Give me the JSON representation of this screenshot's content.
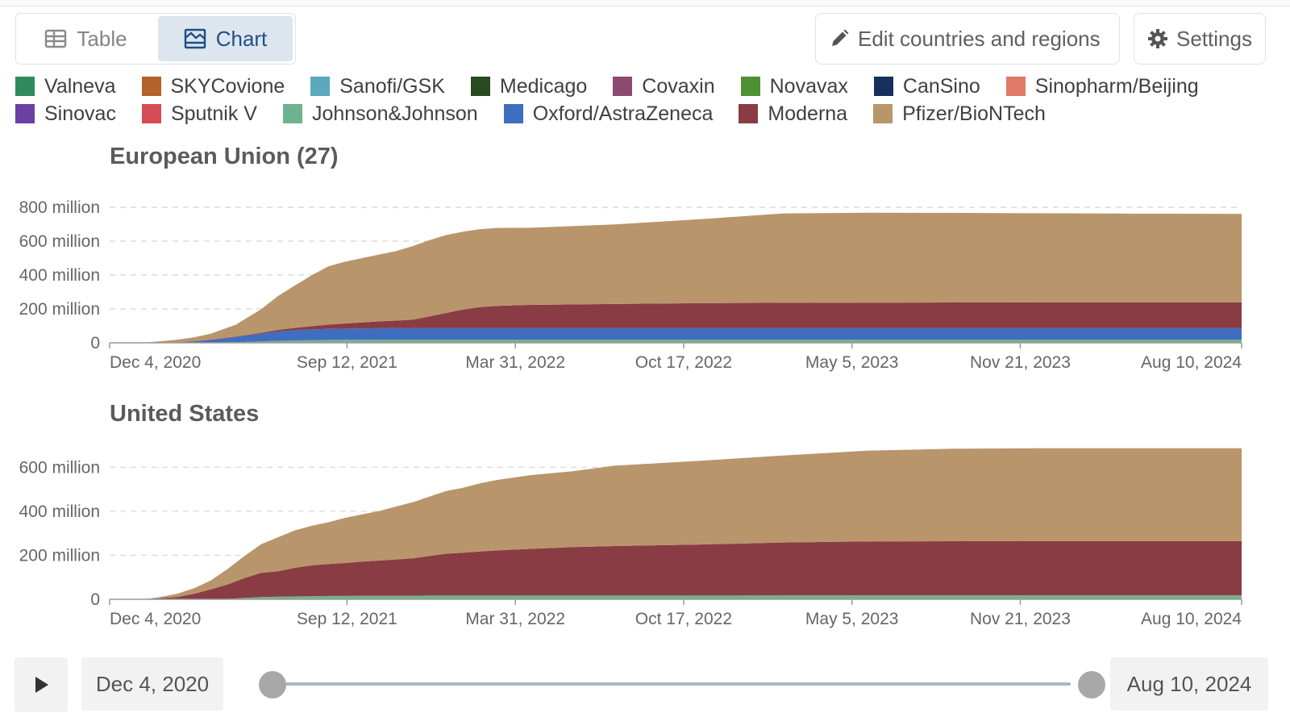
{
  "tabs": [
    {
      "label": "Table",
      "icon": "table-icon",
      "active": false
    },
    {
      "label": "Chart",
      "icon": "chart-icon",
      "active": true
    }
  ],
  "actions": {
    "edit_label": "Edit countries and regions",
    "settings_label": "Settings"
  },
  "legend": [
    {
      "name": "Valneva",
      "color": "#2f8b5e"
    },
    {
      "name": "SKYCovione",
      "color": "#b5612a"
    },
    {
      "name": "Sanofi/GSK",
      "color": "#5aa9bd"
    },
    {
      "name": "Medicago",
      "color": "#2a4a1f"
    },
    {
      "name": "Covaxin",
      "color": "#8c4a70"
    },
    {
      "name": "Novavax",
      "color": "#4e9135"
    },
    {
      "name": "CanSino",
      "color": "#16305c"
    },
    {
      "name": "Sinopharm/Beijing",
      "color": "#de7a66"
    },
    {
      "name": "Sinovac",
      "color": "#6b3fa3"
    },
    {
      "name": "Sputnik V",
      "color": "#d64b56"
    },
    {
      "name": "Johnson&Johnson",
      "color": "#6fb38e"
    },
    {
      "name": "Oxford/AstraZeneca",
      "color": "#3f6dbf"
    },
    {
      "name": "Moderna",
      "color": "#8a3c44"
    },
    {
      "name": "Pfizer/BioNTech",
      "color": "#b9956b"
    }
  ],
  "chart_data": [
    {
      "type": "area",
      "stacked": true,
      "title": "European Union (27)",
      "ylim": [
        0,
        900
      ],
      "y_unit": "million",
      "yticks": [
        {
          "value": 0,
          "label": "0"
        },
        {
          "value": 200,
          "label": "200 million"
        },
        {
          "value": 400,
          "label": "400 million"
        },
        {
          "value": 600,
          "label": "600 million"
        },
        {
          "value": 800,
          "label": "800 million"
        }
      ],
      "xlim": [
        0,
        1345
      ],
      "xticks": [
        {
          "day": 0,
          "label": "Dec 4, 2020"
        },
        {
          "day": 282,
          "label": "Sep 12, 2021"
        },
        {
          "day": 482,
          "label": "Mar 31, 2022"
        },
        {
          "day": 682,
          "label": "Oct 17, 2022"
        },
        {
          "day": 882,
          "label": "May 5, 2023"
        },
        {
          "day": 1082,
          "label": "Nov 21, 2023"
        },
        {
          "day": 1345,
          "label": "Aug 10, 2024"
        }
      ],
      "x": [
        0,
        40,
        60,
        80,
        100,
        120,
        150,
        180,
        200,
        220,
        240,
        260,
        280,
        300,
        320,
        340,
        360,
        380,
        400,
        420,
        440,
        460,
        500,
        600,
        700,
        800,
        900,
        1000,
        1100,
        1200,
        1345
      ],
      "series": [
        {
          "name": "Johnson&Johnson",
          "color": "#6fb38e",
          "values": [
            0,
            0,
            0,
            0,
            1,
            2,
            4,
            8,
            12,
            14,
            16,
            17,
            18,
            18,
            19,
            19,
            19,
            19,
            19,
            19,
            19,
            19,
            19,
            19,
            19,
            19,
            19,
            19,
            19,
            19,
            19
          ]
        },
        {
          "name": "Oxford/AstraZeneca",
          "color": "#3f6dbf",
          "values": [
            0,
            0,
            1,
            3,
            8,
            15,
            30,
            45,
            55,
            60,
            63,
            65,
            66,
            67,
            67,
            67,
            67,
            67,
            67,
            67,
            67,
            67,
            67,
            67,
            67,
            67,
            67,
            67,
            67,
            67,
            67
          ]
        },
        {
          "name": "Moderna",
          "color": "#8a3c44",
          "values": [
            0,
            0,
            0,
            0,
            1,
            2,
            3,
            5,
            9,
            14,
            19,
            25,
            30,
            35,
            40,
            45,
            50,
            70,
            90,
            110,
            125,
            132,
            138,
            143,
            148,
            150,
            151,
            152,
            153,
            153,
            153
          ]
        },
        {
          "name": "Pfizer/BioNTech",
          "color": "#b9956b",
          "values": [
            0,
            0,
            8,
            15,
            22,
            35,
            70,
            140,
            200,
            250,
            300,
            345,
            365,
            380,
            395,
            410,
            435,
            450,
            460,
            460,
            460,
            460,
            455,
            470,
            495,
            528,
            531,
            529,
            526,
            524,
            522
          ]
        }
      ]
    },
    {
      "type": "area",
      "stacked": true,
      "title": "United States",
      "ylim": [
        0,
        700
      ],
      "y_unit": "million",
      "yticks": [
        {
          "value": 0,
          "label": "0"
        },
        {
          "value": 200,
          "label": "200 million"
        },
        {
          "value": 400,
          "label": "400 million"
        },
        {
          "value": 600,
          "label": "600 million"
        }
      ],
      "xlim": [
        0,
        1345
      ],
      "xticks": [
        {
          "day": 0,
          "label": "Dec 4, 2020"
        },
        {
          "day": 282,
          "label": "Sep 12, 2021"
        },
        {
          "day": 482,
          "label": "Mar 31, 2022"
        },
        {
          "day": 682,
          "label": "Oct 17, 2022"
        },
        {
          "day": 882,
          "label": "May 5, 2023"
        },
        {
          "day": 1082,
          "label": "Nov 21, 2023"
        },
        {
          "day": 1345,
          "label": "Aug 10, 2024"
        }
      ],
      "x": [
        0,
        40,
        60,
        80,
        100,
        120,
        140,
        160,
        180,
        200,
        220,
        240,
        260,
        280,
        300,
        320,
        340,
        360,
        380,
        400,
        420,
        440,
        460,
        500,
        550,
        600,
        700,
        800,
        900,
        1000,
        1100,
        1200,
        1345
      ],
      "series": [
        {
          "name": "Johnson&Johnson",
          "color": "#6fb38e",
          "values": [
            0,
            0,
            0,
            0,
            0,
            0,
            2,
            6,
            10,
            12,
            13,
            14,
            15,
            15,
            16,
            16,
            16,
            16,
            17,
            17,
            17,
            17,
            17,
            17,
            17,
            17,
            17,
            18,
            18,
            18,
            18,
            18,
            18
          ]
        },
        {
          "name": "Moderna",
          "color": "#8a3c44",
          "values": [
            0,
            0,
            5,
            10,
            25,
            45,
            65,
            90,
            110,
            115,
            130,
            140,
            145,
            150,
            155,
            160,
            165,
            170,
            180,
            190,
            195,
            200,
            205,
            212,
            220,
            225,
            232,
            240,
            245,
            246,
            247,
            247,
            247
          ]
        },
        {
          "name": "Pfizer/BioNTech",
          "color": "#b9956b",
          "values": [
            0,
            0,
            5,
            15,
            25,
            40,
            70,
            100,
            130,
            155,
            170,
            180,
            190,
            205,
            215,
            225,
            240,
            255,
            270,
            285,
            295,
            310,
            320,
            335,
            345,
            365,
            380,
            395,
            412,
            420,
            421,
            421,
            421
          ]
        }
      ]
    }
  ],
  "timeline": {
    "start_date": "Dec 4, 2020",
    "end_date": "Aug 10, 2024"
  }
}
